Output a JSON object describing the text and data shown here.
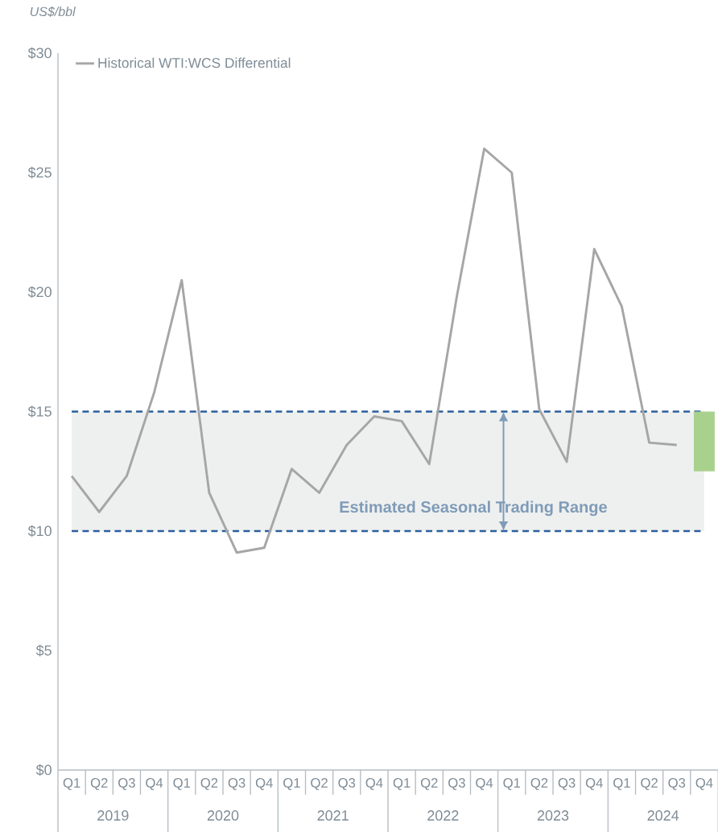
{
  "chart_data": {
    "type": "line",
    "ylabel": "US$/bbl",
    "categories": [
      "Q1",
      "Q2",
      "Q3",
      "Q4",
      "Q1",
      "Q2",
      "Q3",
      "Q4",
      "Q1",
      "Q2",
      "Q3",
      "Q4",
      "Q1",
      "Q2",
      "Q3",
      "Q4",
      "Q1",
      "Q2",
      "Q3",
      "Q4",
      "Q1",
      "Q2",
      "Q3",
      "Q4"
    ],
    "series": [
      {
        "name": "Historical WTI:WCS Differential",
        "color": "#a6a6a6",
        "values": [
          12.3,
          10.8,
          12.3,
          15.8,
          20.5,
          11.6,
          9.1,
          9.3,
          12.6,
          11.6,
          13.6,
          14.8,
          14.6,
          12.8,
          19.8,
          26.0,
          25.0,
          15.1,
          12.9,
          21.8,
          19.4,
          13.7,
          13.6,
          null
        ]
      },
      {
        "type": "bar",
        "color": "#a9d18e",
        "base": [
          null,
          null,
          null,
          null,
          null,
          null,
          null,
          null,
          null,
          null,
          null,
          null,
          null,
          null,
          null,
          null,
          null,
          null,
          null,
          null,
          null,
          null,
          null,
          12.5
        ],
        "values": [
          null,
          null,
          null,
          null,
          null,
          null,
          null,
          null,
          null,
          null,
          null,
          null,
          null,
          null,
          null,
          null,
          null,
          null,
          null,
          null,
          null,
          null,
          null,
          2.5
        ]
      }
    ],
    "ylim": [
      0,
      30
    ],
    "yticks": [
      {
        "value": 0,
        "label": "$0"
      },
      {
        "value": 5,
        "label": "$5"
      },
      {
        "value": 10,
        "label": "$10"
      },
      {
        "value": 15,
        "label": "$15"
      },
      {
        "value": 20,
        "label": "$20"
      },
      {
        "value": 25,
        "label": "$25"
      },
      {
        "value": 30,
        "label": "$30"
      }
    ],
    "legend": "top left",
    "marker": "none",
    "bands": [
      {
        "axis": "y",
        "from": 10,
        "to": 15,
        "label": "Estimated Seasonal Trading Range",
        "color": "#eef0ef"
      }
    ],
    "ref_lines": [
      {
        "axis": "y",
        "value": 10,
        "color": "#2a5f9e",
        "line_style": "dashed"
      },
      {
        "axis": "y",
        "value": 15,
        "color": "#2a5f9e",
        "line_style": "dashed"
      }
    ],
    "annotations": [
      "2019",
      "2020",
      "2021",
      "2022",
      "2023",
      "2024"
    ]
  }
}
